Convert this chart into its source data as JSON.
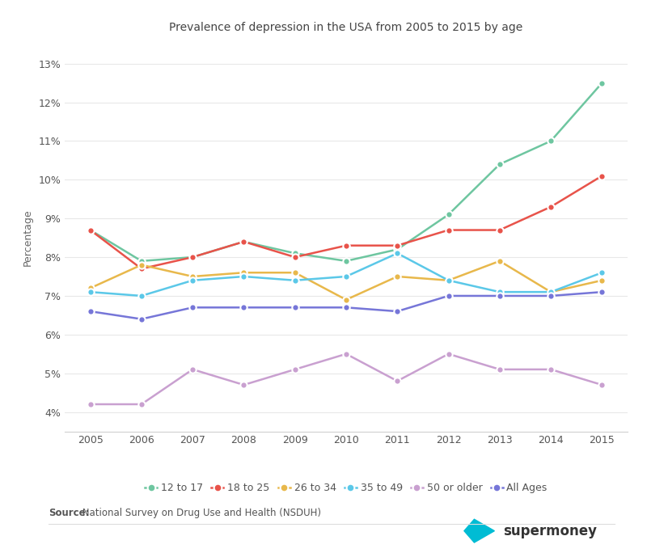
{
  "title": "Prevalence of depression in the USA from 2005 to 2015 by age",
  "ylabel": "Percentage",
  "source_bold": "Source:",
  "source_normal": " National Survey on Drug Use and Health (NSDUH)",
  "years": [
    2005,
    2006,
    2007,
    2008,
    2009,
    2010,
    2011,
    2012,
    2013,
    2014,
    2015
  ],
  "series": {
    "12 to 17": {
      "values": [
        8.7,
        7.9,
        8.0,
        8.4,
        8.1,
        7.9,
        8.2,
        9.1,
        10.4,
        11.0,
        12.5
      ],
      "color": "#6ec6a0"
    },
    "18 to 25": {
      "values": [
        8.7,
        7.7,
        8.0,
        8.4,
        8.0,
        8.3,
        8.3,
        8.7,
        8.7,
        9.3,
        10.1
      ],
      "color": "#e8534a"
    },
    "26 to 34": {
      "values": [
        7.2,
        7.8,
        7.5,
        7.6,
        7.6,
        6.9,
        7.5,
        7.4,
        7.9,
        7.1,
        7.4
      ],
      "color": "#e8b84b"
    },
    "35 to 49": {
      "values": [
        7.1,
        7.0,
        7.4,
        7.5,
        7.4,
        7.5,
        8.1,
        7.4,
        7.1,
        7.1,
        7.6
      ],
      "color": "#5bc8e8"
    },
    "50 or older": {
      "values": [
        4.2,
        4.2,
        5.1,
        4.7,
        5.1,
        5.5,
        4.8,
        5.5,
        5.1,
        5.1,
        4.7
      ],
      "color": "#c9a0d0"
    },
    "All Ages": {
      "values": [
        6.6,
        6.4,
        6.7,
        6.7,
        6.7,
        6.7,
        6.6,
        7.0,
        7.0,
        7.0,
        7.1
      ],
      "color": "#7676d8"
    }
  },
  "ylim": [
    3.5,
    13.5
  ],
  "yticks": [
    4,
    5,
    6,
    7,
    8,
    9,
    10,
    11,
    12,
    13
  ],
  "background_color": "#ffffff",
  "grid_color": "#e8e8e8",
  "title_fontsize": 10,
  "axis_label_fontsize": 9,
  "tick_fontsize": 9,
  "legend_fontsize": 9
}
